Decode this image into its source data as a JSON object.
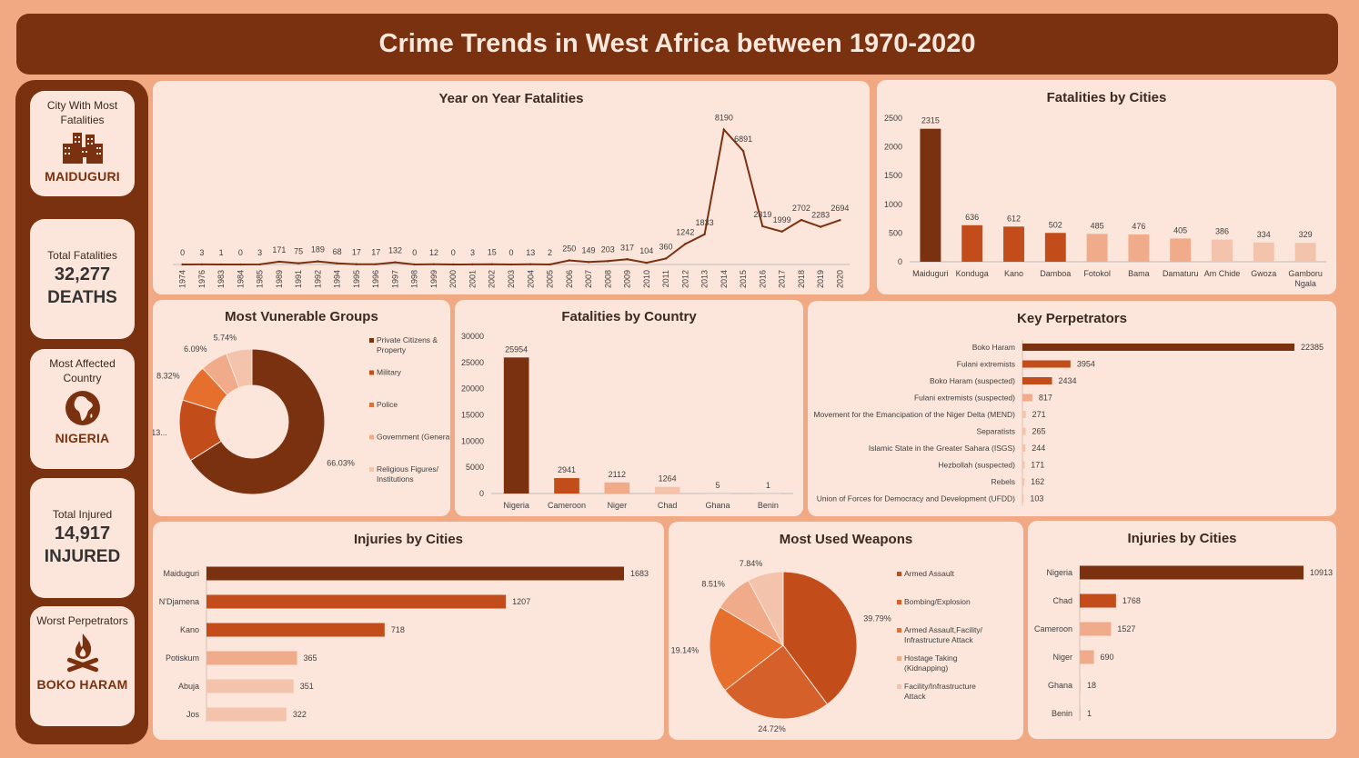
{
  "title": "Crime Trends in West Africa between 1970-2020",
  "colors": {
    "dark": "#7a3110",
    "mid": "#c24c1a",
    "orange": "#e66f2e",
    "light": "#f0ab8a",
    "pale": "#f4c3ab",
    "panel": "#fce5da",
    "line": "#7a3110"
  },
  "kpis": {
    "city": {
      "label": "City With Most Fatalities",
      "icon": "buildings-icon",
      "value": "MAIDUGURI"
    },
    "fatalities": {
      "label": "Total Fatalities",
      "number": "32,277",
      "value": "DEATHS"
    },
    "country": {
      "label": "Most Affected Country",
      "icon": "globe-icon",
      "value": "NIGERIA"
    },
    "injured": {
      "label": "Total Injured",
      "number": "14,917",
      "value": "INJURED"
    },
    "perpetrator": {
      "label": "Worst Perpetrators",
      "icon": "campfire-icon",
      "value": "BOKO HARAM"
    }
  },
  "chart_data": [
    {
      "id": "yoy",
      "type": "line",
      "title": "Year on Year Fatalities",
      "x": [
        "1974",
        "1976",
        "1983",
        "1984",
        "1985",
        "1989",
        "1991",
        "1992",
        "1994",
        "1995",
        "1996",
        "1997",
        "1998",
        "1999",
        "2000",
        "2001",
        "2002",
        "2003",
        "2004",
        "2005",
        "2006",
        "2007",
        "2008",
        "2009",
        "2010",
        "2011",
        "2012",
        "2013",
        "2014",
        "2015",
        "2016",
        "2017",
        "2018",
        "2019",
        "2020"
      ],
      "values": [
        0,
        3,
        1,
        0,
        3,
        171,
        75,
        189,
        68,
        17,
        17,
        132,
        0,
        12,
        0,
        3,
        15,
        0,
        13,
        2,
        250,
        149,
        203,
        317,
        104,
        360,
        1242,
        1833,
        8190,
        6891,
        2319,
        1999,
        2702,
        2283,
        2694
      ],
      "ylim": [
        0,
        8500
      ]
    },
    {
      "id": "fat_cities",
      "type": "bar",
      "title": "Fatalities by Cities",
      "categories": [
        "Maiduguri",
        "Konduga",
        "Kano",
        "Damboa",
        "Fotokol",
        "Bama",
        "Damaturu",
        "Am Chide",
        "Gwoza",
        "Gamboru Ngala"
      ],
      "values": [
        2315,
        636,
        612,
        502,
        485,
        476,
        405,
        386,
        334,
        329
      ],
      "yticks": [
        "2500",
        "2000",
        "1500",
        "1000",
        "500",
        "0"
      ],
      "ylim": [
        0,
        2500
      ]
    },
    {
      "id": "groups",
      "type": "pie",
      "title": "Most Vunerable Groups",
      "labels": [
        "Private Citizens & Property",
        "Military",
        "Police",
        "Government (General)",
        "Religious Figures/Institutions"
      ],
      "values": [
        66.03,
        13.8,
        8.32,
        6.09,
        5.74
      ],
      "data_labels": [
        "66.03%",
        "13...",
        "8.32%",
        "6.09%",
        "5.74%"
      ]
    },
    {
      "id": "fat_country",
      "type": "bar",
      "title": "Fatalities by Country",
      "categories": [
        "Nigeria",
        "Cameroon",
        "Niger",
        "Chad",
        "Ghana",
        "Benin"
      ],
      "values": [
        25954,
        2941,
        2112,
        1264,
        5,
        1
      ],
      "yticks": [
        "30000",
        "25000",
        "20000",
        "15000",
        "10000",
        "5000",
        "0"
      ],
      "ylim": [
        0,
        30000
      ]
    },
    {
      "id": "perps",
      "type": "bar",
      "title": "Key Perpetrators",
      "categories": [
        "Boko Haram",
        "Fulani extremists",
        "Boko Haram (suspected)",
        "Fulani extremists (suspected)",
        "Movement for the Emancipation of the Niger Delta (MEND)",
        "Separatists",
        "Islamic State in the Greater Sahara (ISGS)",
        "Hezbollah (suspected)",
        "Rebels",
        "Union of Forces for Democracy and Development (UFDD)"
      ],
      "values": [
        22385,
        3954,
        2434,
        817,
        271,
        265,
        244,
        171,
        162,
        103
      ],
      "xlim": [
        0,
        22385
      ]
    },
    {
      "id": "inj_cities",
      "type": "bar",
      "title": "Injuries by Cities",
      "categories": [
        "Maiduguri",
        "N'Djamena",
        "Kano",
        "Potiskum",
        "Abuja",
        "Jos"
      ],
      "values": [
        1683,
        1207,
        718,
        365,
        351,
        322
      ],
      "xlim": [
        0,
        1683
      ]
    },
    {
      "id": "weapons",
      "type": "pie",
      "title": "Most Used Weapons",
      "labels": [
        "Armed Assault",
        "Bombing/Explosion",
        "Armed Assault,Facility/Infrastructure Attack",
        "Hostage Taking (Kidnapping)",
        "Facility/Infrastructure Attack"
      ],
      "values": [
        39.79,
        24.72,
        19.14,
        8.51,
        7.84
      ],
      "data_labels": [
        "39.79%",
        "24.72%",
        "19.14%",
        "8.51%",
        "7.84%"
      ]
    },
    {
      "id": "inj_country",
      "type": "bar",
      "title": "Injuries by Cities",
      "categories": [
        "Nigeria",
        "Chad",
        "Cameroon",
        "Niger",
        "Ghana",
        "Benin"
      ],
      "values": [
        10913,
        1768,
        1527,
        690,
        18,
        1
      ],
      "xlim": [
        0,
        10913
      ]
    }
  ]
}
